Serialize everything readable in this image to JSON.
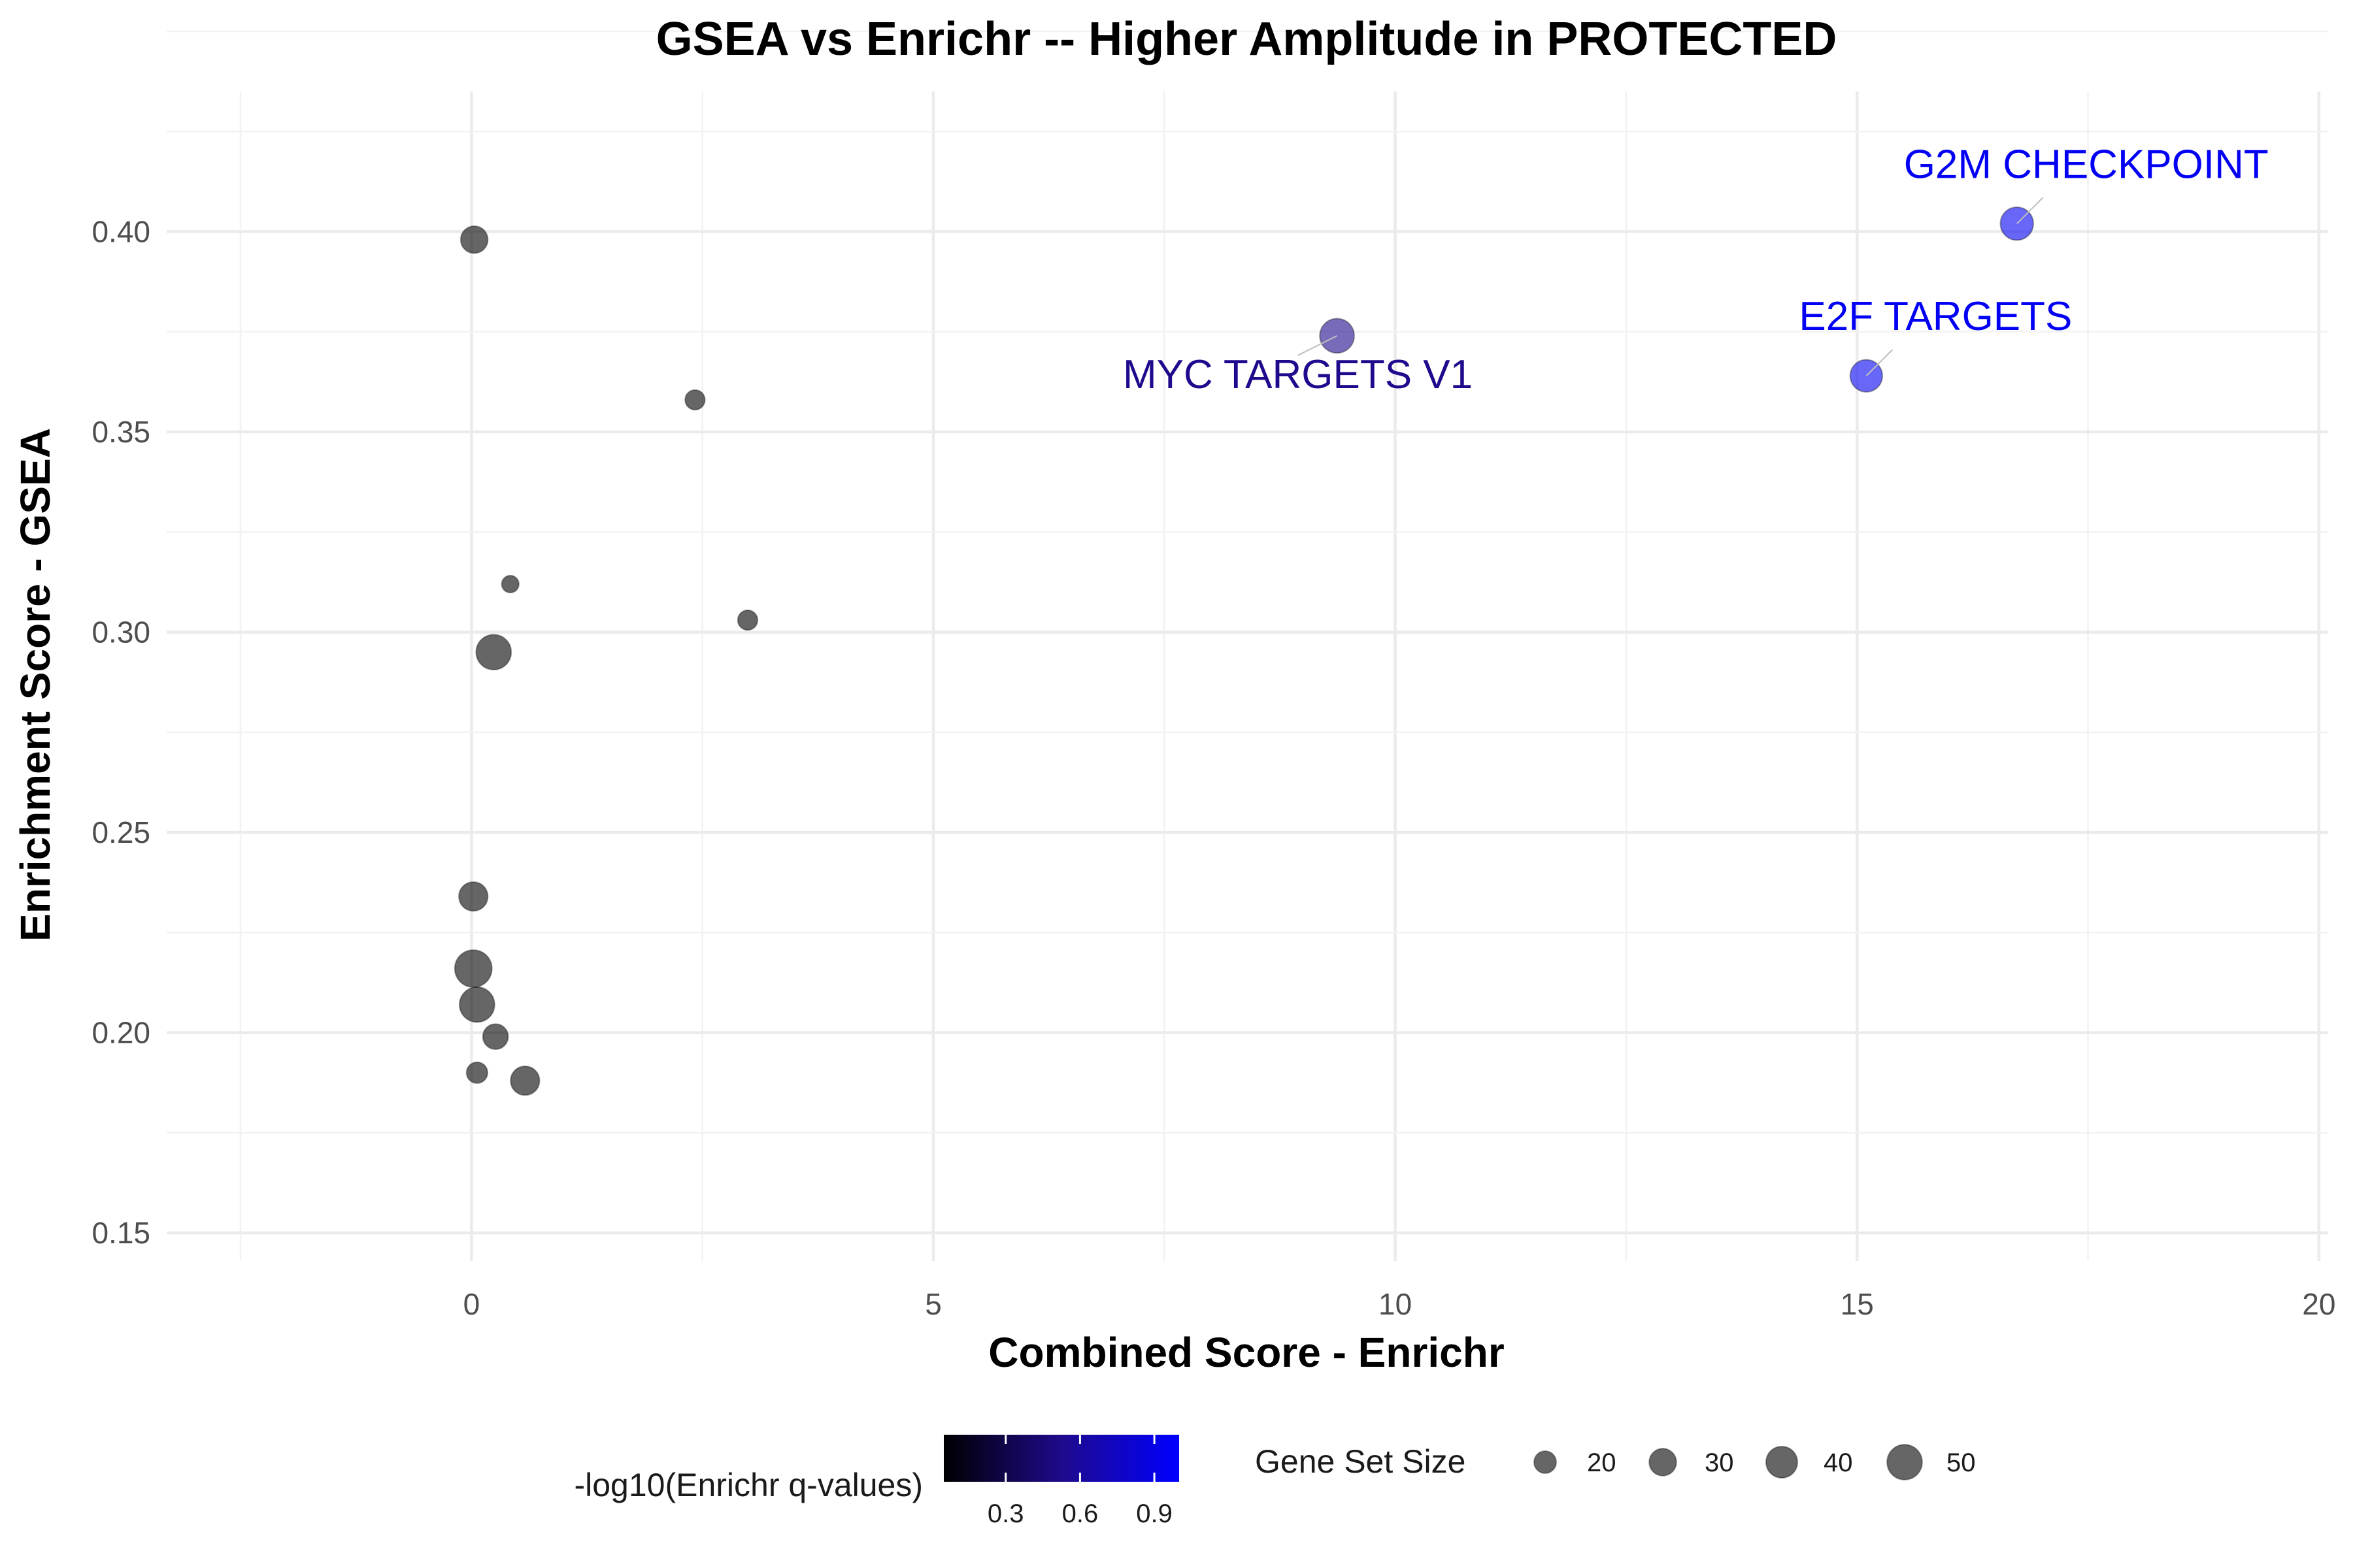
{
  "chart_data": {
    "type": "scatter",
    "title": "GSEA vs Enrichr -- Higher Amplitude in PROTECTED",
    "xlabel": "Combined Score - Enrichr",
    "ylabel": "Enrichment Score - GSEA",
    "xlim": [
      -3.3,
      20.1
    ],
    "ylim": [
      0.143,
      0.435
    ],
    "x_ticks": [
      0,
      5,
      10,
      15,
      20
    ],
    "y_ticks": [
      0.15,
      0.2,
      0.25,
      0.3,
      0.35,
      0.4
    ],
    "x_tick_labels": [
      "0",
      "5",
      "10",
      "15",
      "20"
    ],
    "y_tick_labels": [
      "0.15",
      "0.20",
      "0.25",
      "0.30",
      "0.35",
      "0.40"
    ],
    "grid": true,
    "points": [
      {
        "x": 0.03,
        "y": 0.398,
        "size": 30,
        "q": 0
      },
      {
        "x": 2.42,
        "y": 0.358,
        "size": 16,
        "q": 0
      },
      {
        "x": 0.42,
        "y": 0.312,
        "size": 12,
        "q": 0
      },
      {
        "x": 2.99,
        "y": 0.303,
        "size": 16,
        "q": 0
      },
      {
        "x": 0.24,
        "y": 0.295,
        "size": 50,
        "q": 0
      },
      {
        "x": 0.02,
        "y": 0.234,
        "size": 34,
        "q": 0
      },
      {
        "x": 0.02,
        "y": 0.216,
        "size": 56,
        "q": 0
      },
      {
        "x": 0.06,
        "y": 0.207,
        "size": 50,
        "q": 0
      },
      {
        "x": 0.26,
        "y": 0.199,
        "size": 26,
        "q": 0
      },
      {
        "x": 0.06,
        "y": 0.19,
        "size": 18,
        "q": 0
      },
      {
        "x": 0.58,
        "y": 0.188,
        "size": 34,
        "q": 0
      },
      {
        "x": 9.37,
        "y": 0.374,
        "size": 48,
        "q": 0.5,
        "label": "MYC TARGETS V1"
      },
      {
        "x": 15.1,
        "y": 0.364,
        "size": 42,
        "q": 0.95,
        "label": "E2F TARGETS"
      },
      {
        "x": 16.73,
        "y": 0.402,
        "size": 44,
        "q": 0.95,
        "label": "G2M CHECKPOINT"
      }
    ],
    "legend": {
      "placement": "bottom",
      "color_title": "-log10(Enrichr q-values)",
      "color_low": "#000000",
      "color_high": "#0000ff",
      "color_domain": [
        0.05,
        1.0
      ],
      "color_ticks": [
        0.3,
        0.6,
        0.9
      ],
      "color_tick_labels": [
        "0.3",
        "0.6",
        "0.9"
      ],
      "size_title": "Gene Set Size",
      "size_breaks": [
        20,
        30,
        40,
        50
      ],
      "size_labels": [
        "20",
        "30",
        "40",
        "50"
      ]
    }
  }
}
